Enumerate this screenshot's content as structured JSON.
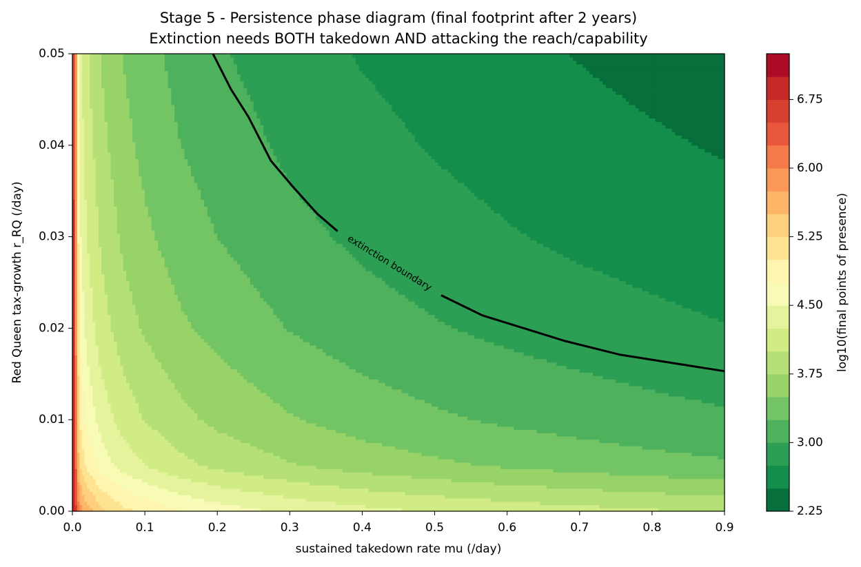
{
  "chart_data": {
    "type": "contour",
    "title": [
      "Stage 5 - Persistence phase diagram (final footprint after 2 years)",
      "Extinction needs BOTH takedown AND attacking the reach/capability"
    ],
    "x_label": "sustained takedown rate  mu  (/day)",
    "y_label": "Red Queen tax-growth  r_RQ  (/day)",
    "colorbar_label": "log10(final points of presence)",
    "x": [
      0,
      0.01,
      0.02,
      0.04,
      0.07,
      0.1,
      0.15,
      0.2,
      0.3,
      0.4,
      0.5,
      0.6,
      0.7,
      0.8,
      0.9
    ],
    "y": [
      0,
      0.005,
      0.01,
      0.02,
      0.03,
      0.04,
      0.05
    ],
    "z": [
      [
        7.2,
        5.91,
        5.62,
        5.32,
        5.08,
        4.93,
        4.75,
        4.63,
        4.45,
        4.33,
        4.23,
        4.15,
        4.09,
        4.03,
        3.98
      ],
      [
        7.2,
        5.24,
        4.94,
        4.64,
        4.4,
        4.25,
        4.07,
        3.94,
        3.77,
        3.64,
        3.55,
        3.47,
        3.4,
        3.34,
        3.29
      ],
      [
        7.2,
        4.99,
        4.69,
        4.39,
        4.15,
        3.99,
        3.82,
        3.69,
        3.52,
        3.39,
        3.29,
        3.21,
        3.15,
        3.09,
        3.04
      ],
      [
        7.2,
        4.72,
        4.42,
        4.11,
        3.87,
        3.72,
        3.54,
        3.42,
        3.24,
        3.11,
        3.02,
        2.94,
        2.87,
        2.81,
        2.76
      ],
      [
        7.2,
        4.55,
        4.25,
        3.95,
        3.7,
        3.55,
        3.37,
        3.25,
        3.07,
        2.95,
        2.85,
        2.77,
        2.7,
        2.65,
        2.6
      ],
      [
        7.2,
        4.43,
        4.13,
        3.83,
        3.58,
        3.43,
        3.25,
        3.13,
        2.95,
        2.83,
        2.73,
        2.65,
        2.58,
        2.53,
        2.48
      ],
      [
        7.2,
        4.33,
        4.03,
        3.73,
        3.49,
        3.34,
        3.16,
        3.03,
        2.86,
        2.73,
        2.64,
        2.56,
        2.49,
        2.43,
        2.38
      ]
    ],
    "levels": [
      2.25,
      2.5,
      2.75,
      3.0,
      3.25,
      3.5,
      3.75,
      4.0,
      4.25,
      4.5,
      4.75,
      5.0,
      5.25,
      5.5,
      5.75,
      6.0,
      6.25,
      6.5,
      6.75,
      7.0,
      7.25
    ],
    "colors": [
      "#066f3b",
      "#148e4b",
      "#2c9f54",
      "#4eb15d",
      "#73c465",
      "#97d369",
      "#b5e077",
      "#d1ec85",
      "#e5f49c",
      "#f8fbb6",
      "#fff5ae",
      "#fee491",
      "#fed07d",
      "#fdb567",
      "#fb9857",
      "#f57a4a",
      "#e8573b",
      "#d73f2f",
      "#c62727",
      "#ad0b26"
    ],
    "clim": [
      2.25,
      7.25
    ],
    "cticks": [
      2.25,
      {
        "value": 3,
        "label": "3.00"
      },
      3.75,
      {
        "value": 4.5,
        "label": "4.50"
      },
      5.25,
      {
        "value": 6,
        "label": "6.00"
      },
      6.75
    ],
    "lines": [
      {
        "name": "extinction boundary",
        "color": "#000000",
        "x": [
          0.194,
          0.219,
          0.243,
          0.274,
          0.304,
          0.338,
          0.366,
          0.44,
          0.509,
          0.566,
          0.623,
          0.68,
          0.756,
          0.9
        ],
        "y": [
          0.05,
          0.0461,
          0.0431,
          0.0383,
          0.0355,
          0.0325,
          0.0306,
          null,
          0.0236,
          0.0214,
          0.02,
          0.0186,
          0.0171,
          0.0153
        ]
      }
    ],
    "xlim": [
      0,
      0.9
    ],
    "ylim": [
      0,
      0.05
    ],
    "xticks": [
      {
        "value": 0,
        "label": "0.0"
      },
      0.1,
      0.2,
      0.3,
      0.4,
      0.5,
      0.6,
      0.7,
      0.8,
      0.9
    ],
    "yticks": [
      {
        "value": 0,
        "label": "0.00"
      },
      0.01,
      0.02,
      0.03,
      0.04,
      0.05
    ]
  }
}
